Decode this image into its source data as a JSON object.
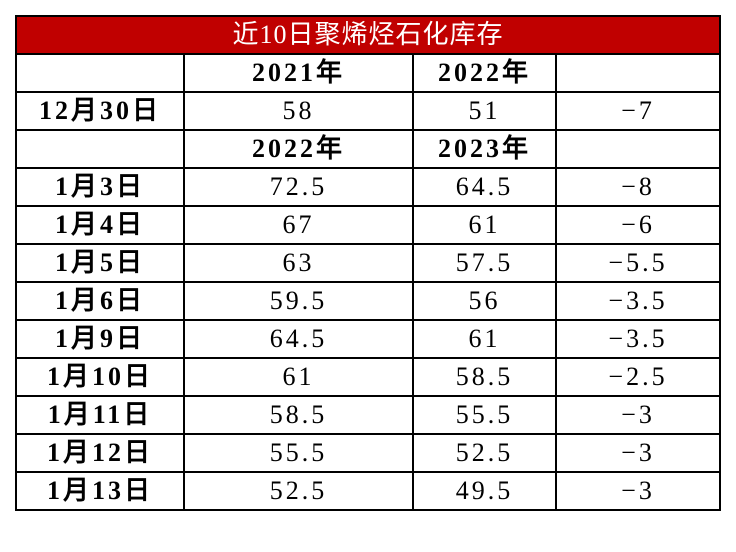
{
  "table": {
    "title": "近10日聚烯烃石化库存",
    "sections": [
      {
        "header": [
          "2021年",
          "2022年"
        ],
        "rows": [
          [
            "12月30日",
            "58",
            "51",
            "−7"
          ]
        ]
      },
      {
        "header": [
          "2022年",
          "2023年"
        ],
        "rows": [
          [
            "1月3日",
            "72.5",
            "64.5",
            "−8"
          ],
          [
            "1月4日",
            "67",
            "61",
            "−6"
          ],
          [
            "1月5日",
            "63",
            "57.5",
            "−5.5"
          ],
          [
            "1月6日",
            "59.5",
            "56",
            "−3.5"
          ],
          [
            "1月9日",
            "64.5",
            "61",
            "−3.5"
          ],
          [
            "1月10日",
            "61",
            "58.5",
            "−2.5"
          ],
          [
            "1月11日",
            "58.5",
            "55.5",
            "−3"
          ],
          [
            "1月12日",
            "55.5",
            "52.5",
            "−3"
          ],
          [
            "1月13日",
            "52.5",
            "49.5",
            "−3"
          ]
        ]
      }
    ]
  }
}
